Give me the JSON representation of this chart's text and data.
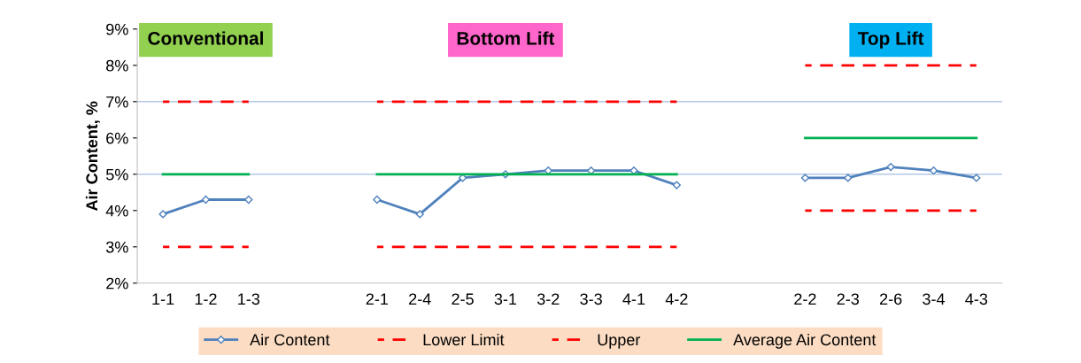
{
  "chart_data": {
    "type": "line",
    "ylabel": "Air Content, %",
    "categories": [
      "1-1",
      "1-2",
      "1-3",
      null,
      null,
      "2-1",
      "2-4",
      "2-5",
      "3-1",
      "3-2",
      "3-3",
      "4-1",
      "4-2",
      null,
      null,
      "2-2",
      "2-3",
      "2-6",
      "3-4",
      "4-3"
    ],
    "series": [
      {
        "name": "Air Content",
        "color": "#4f81bd",
        "marker": "diamond",
        "line_style": "solid",
        "values": [
          3.9,
          4.3,
          4.3,
          null,
          null,
          4.3,
          3.9,
          4.9,
          5.0,
          5.1,
          5.1,
          5.1,
          4.7,
          null,
          null,
          4.9,
          4.9,
          5.2,
          5.1,
          4.9
        ]
      },
      {
        "name": "Lower Limit",
        "color": "#ff0000",
        "marker": "none",
        "line_style": "dashed",
        "values": [
          3,
          3,
          3,
          null,
          null,
          3,
          3,
          3,
          3,
          3,
          3,
          3,
          3,
          null,
          null,
          4,
          4,
          4,
          4,
          4
        ]
      },
      {
        "name": "Upper",
        "color": "#ff0000",
        "marker": "none",
        "line_style": "dashed",
        "values": [
          7,
          7,
          7,
          null,
          null,
          7,
          7,
          7,
          7,
          7,
          7,
          7,
          7,
          null,
          null,
          8,
          8,
          8,
          8,
          8
        ]
      },
      {
        "name": "Average Air Content",
        "color": "#00b050",
        "marker": "none",
        "line_style": "solid",
        "values": [
          5,
          5,
          5,
          null,
          null,
          5,
          5,
          5,
          5,
          5,
          5,
          5,
          5,
          null,
          null,
          6,
          6,
          6,
          6,
          6
        ]
      }
    ],
    "ylim": [
      2,
      9
    ],
    "yticks": [
      {
        "value": 2,
        "label": "2%"
      },
      {
        "value": 3,
        "label": "3%"
      },
      {
        "value": 4,
        "label": "4%"
      },
      {
        "value": 5,
        "label": "5%"
      },
      {
        "value": 6,
        "label": "6%"
      },
      {
        "value": 7,
        "label": "7%"
      },
      {
        "value": 8,
        "label": "8%"
      },
      {
        "value": 9,
        "label": "9%"
      }
    ],
    "ref_lines": [
      {
        "axis": "y",
        "value": 7,
        "color": "#b4c7e7"
      },
      {
        "axis": "y",
        "value": 5,
        "color": "#b4c7e7"
      }
    ],
    "annotations": [
      "Conventional",
      "Bottom Lift",
      "Top Lift"
    ],
    "grid": false,
    "legend": "bottom"
  }
}
